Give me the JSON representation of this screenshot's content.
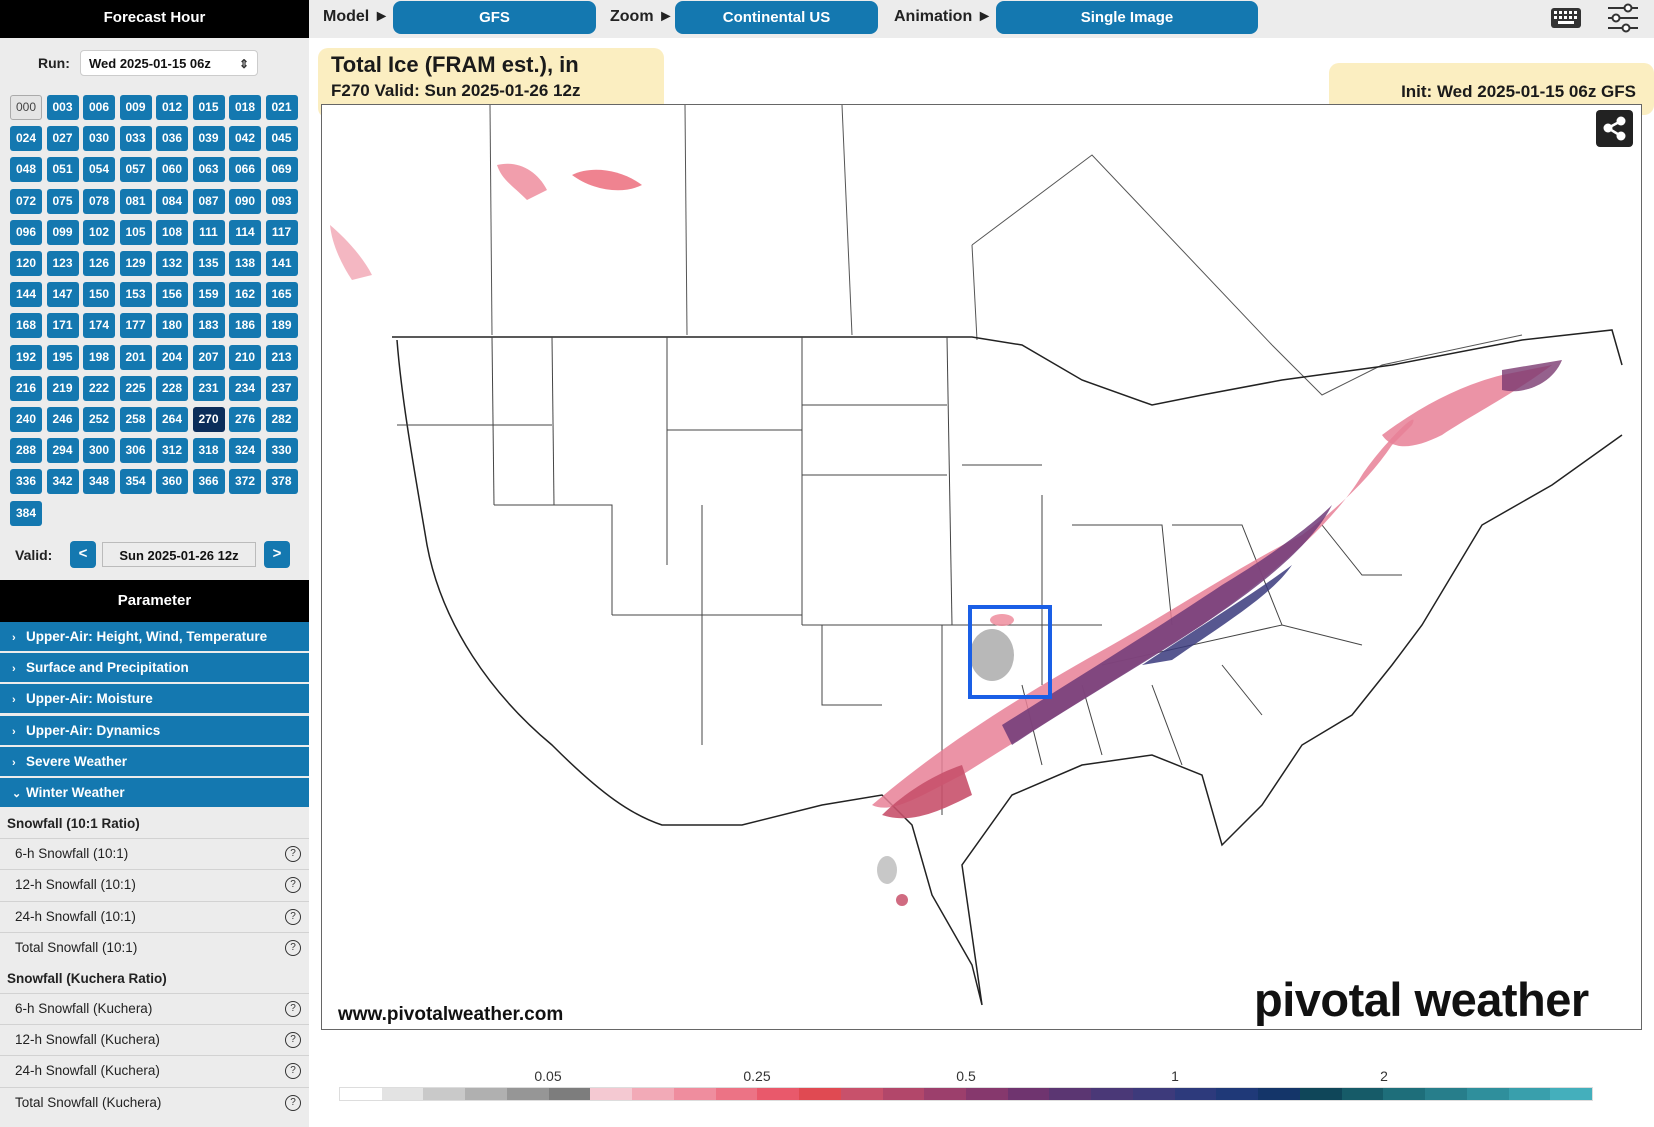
{
  "sidebar": {
    "forecast_hour_title": "Forecast Hour",
    "run_label": "Run:",
    "run_value": "Wed 2025-01-15 06z",
    "hours": [
      "000",
      "003",
      "006",
      "009",
      "012",
      "015",
      "018",
      "021",
      "024",
      "027",
      "030",
      "033",
      "036",
      "039",
      "042",
      "045",
      "048",
      "051",
      "054",
      "057",
      "060",
      "063",
      "066",
      "069",
      "072",
      "075",
      "078",
      "081",
      "084",
      "087",
      "090",
      "093",
      "096",
      "099",
      "102",
      "105",
      "108",
      "111",
      "114",
      "117",
      "120",
      "123",
      "126",
      "129",
      "132",
      "135",
      "138",
      "141",
      "144",
      "147",
      "150",
      "153",
      "156",
      "159",
      "162",
      "165",
      "168",
      "171",
      "174",
      "177",
      "180",
      "183",
      "186",
      "189",
      "192",
      "195",
      "198",
      "201",
      "204",
      "207",
      "210",
      "213",
      "216",
      "219",
      "222",
      "225",
      "228",
      "231",
      "234",
      "237",
      "240",
      "246",
      "252",
      "258",
      "264",
      "270",
      "276",
      "282",
      "288",
      "294",
      "300",
      "306",
      "312",
      "318",
      "324",
      "330",
      "336",
      "342",
      "348",
      "354",
      "360",
      "366",
      "372",
      "378",
      "384"
    ],
    "selected_hour": "270",
    "empty_hour": "000",
    "valid_label": "Valid:",
    "valid_value": "Sun 2025-01-26 12z",
    "prev_label": "<",
    "next_label": ">",
    "parameter_title": "Parameter",
    "categories": [
      {
        "label": "Upper-Air: Height, Wind, Temperature",
        "expanded": false
      },
      {
        "label": "Surface and Precipitation",
        "expanded": false
      },
      {
        "label": "Upper-Air: Moisture",
        "expanded": false
      },
      {
        "label": "Upper-Air: Dynamics",
        "expanded": false
      },
      {
        "label": "Severe Weather",
        "expanded": false
      },
      {
        "label": "Winter Weather",
        "expanded": true
      }
    ],
    "groups": [
      {
        "title": "Snowfall (10:1 Ratio)",
        "items": [
          "6-h Snowfall (10:1)",
          "12-h Snowfall (10:1)",
          "24-h Snowfall (10:1)",
          "Total Snowfall (10:1)"
        ]
      },
      {
        "title": "Snowfall (Kuchera Ratio)",
        "items": [
          "6-h Snowfall (Kuchera)",
          "12-h Snowfall (Kuchera)",
          "24-h Snowfall (Kuchera)",
          "Total Snowfall (Kuchera)"
        ]
      }
    ],
    "help_glyph": "?"
  },
  "topbar": {
    "model_label": "Model ►",
    "model_value": "GFS",
    "zoom_label": "Zoom ►",
    "zoom_value": "Continental US",
    "animation_label": "Animation ►",
    "animation_value": "Single Image",
    "icons": [
      "keyboard-icon",
      "sliders-icon"
    ]
  },
  "map": {
    "title": "Total Ice (FRAM est.), in",
    "subtitle": "F270 Valid: Sun 2025-01-26 12z",
    "init": "Init: Wed 2025-01-15 06z GFS",
    "site": "www.pivotalweather.com",
    "brand": "pivotal weather",
    "share_icon": "share-icon"
  },
  "legend": {
    "tick_labels": [
      "0.05",
      "0.25",
      "0.5",
      "1",
      "2"
    ],
    "colors": [
      "#ffffff",
      "#e3e3e3",
      "#c9c9c9",
      "#b0b0b0",
      "#969696",
      "#7d7d7d",
      "#f4c9d2",
      "#f2aab7",
      "#ef8d9e",
      "#ec7385",
      "#e9596b",
      "#e04a52",
      "#c8516b",
      "#b2476a",
      "#9c3f6c",
      "#86386d",
      "#6f346f",
      "#5b3672",
      "#4a3877",
      "#3d3a7b",
      "#2d3a7c",
      "#1f3978",
      "#143569",
      "#0f4659",
      "#165b68",
      "#1e6e7a",
      "#277e8b",
      "#2f8f9c",
      "#399fac",
      "#44afbc"
    ]
  },
  "colors": {
    "accent": "#1478b0",
    "selected": "#0b2d5a",
    "highlight": "#fbeec1",
    "annotation_box": "#1a5fe6"
  }
}
